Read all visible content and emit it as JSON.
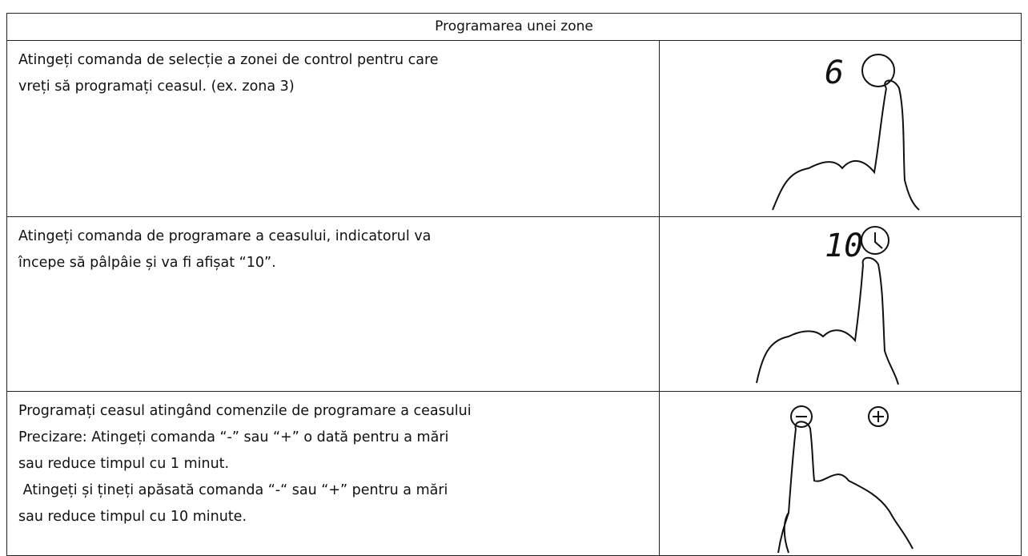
{
  "table": {
    "title": "Programarea unei zone",
    "rows": [
      {
        "text": [
          "Atingeți comanda de selecție a zonei de control pentru care",
          "vreți să programați ceasul. (ex. zona 3)"
        ],
        "display": "6"
      },
      {
        "text": [
          "Atingeți comanda de programare a ceasului, indicatorul va",
          "începe să pâlpâie și va fi afișat “10”."
        ],
        "display": "10"
      },
      {
        "text": [
          "Programați ceasul atingând comenzile de programare a ceasului",
          "Precizare: Atingeți comanda “-” sau “+” o dată pentru a mări",
          "sau reduce timpul cu 1 minut.",
          " Atingeți și țineți apăsată comanda “-“ sau “+” pentru a mări",
          "sau reduce timpul cu 10 minute."
        ]
      }
    ]
  }
}
